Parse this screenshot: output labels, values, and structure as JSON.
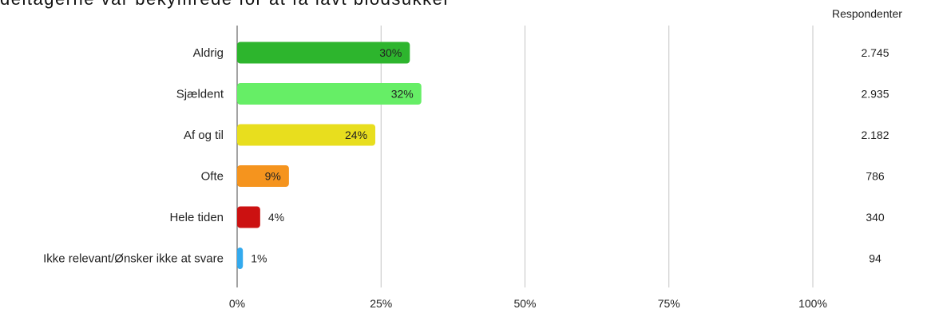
{
  "title": "deltagerne var bekymrede for at få lavt blodsukker",
  "respondents_header": "Respondenter",
  "chart_data": {
    "type": "bar",
    "orientation": "horizontal",
    "title": "deltagerne var bekymrede for at få lavt blodsukker",
    "categories": [
      "Aldrig",
      "Sjældent",
      "Af og til",
      "Ofte",
      "Hele tiden",
      "Ikke relevant/Ønsker ikke at svare"
    ],
    "values": [
      30,
      32,
      24,
      9,
      4,
      1
    ],
    "value_labels": [
      "30%",
      "32%",
      "24%",
      "9%",
      "4%",
      "1%"
    ],
    "respondents": [
      "2.745",
      "2.935",
      "2.182",
      "786",
      "340",
      "94"
    ],
    "colors": [
      "#2db52d",
      "#66ee66",
      "#e8de1e",
      "#f5941e",
      "#cc1111",
      "#33aaee"
    ],
    "xlim": [
      0,
      100
    ],
    "xticks": [
      0,
      25,
      50,
      75,
      100
    ],
    "xtick_labels": [
      "0%",
      "25%",
      "50%",
      "75%",
      "100%"
    ],
    "grid": true
  }
}
